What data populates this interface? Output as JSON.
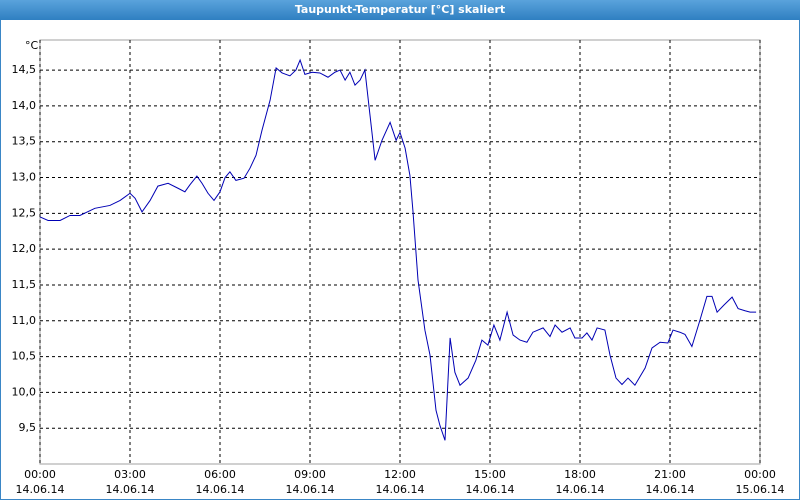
{
  "chart_data": {
    "type": "line",
    "title": "Taupunkt-Temperatur [°C] skaliert",
    "y_label": "°C",
    "color": "#0000b4",
    "grid": true,
    "xlim": [
      0,
      24
    ],
    "ylim": [
      9,
      14.92
    ],
    "xticks": [
      {
        "value": 0,
        "label": "00:00",
        "date": "14.06.14"
      },
      {
        "value": 3,
        "label": "03:00",
        "date": "14.06.14"
      },
      {
        "value": 6,
        "label": "06:00",
        "date": "14.06.14"
      },
      {
        "value": 9,
        "label": "09:00",
        "date": "14.06.14"
      },
      {
        "value": 12,
        "label": "12:00",
        "date": "14.06.14"
      },
      {
        "value": 15,
        "label": "15:00",
        "date": "14.06.14"
      },
      {
        "value": 18,
        "label": "18:00",
        "date": "14.06.14"
      },
      {
        "value": 21,
        "label": "21:00",
        "date": "14.06.14"
      },
      {
        "value": 24,
        "label": "00:00",
        "date": "15.06.14"
      }
    ],
    "yticks": [
      {
        "value": 9.5,
        "label": "9,5"
      },
      {
        "value": 10,
        "label": "10,0"
      },
      {
        "value": 10.5,
        "label": "10,5"
      },
      {
        "value": 11,
        "label": "11,0"
      },
      {
        "value": 11.5,
        "label": "11,5"
      },
      {
        "value": 12,
        "label": "12,0"
      },
      {
        "value": 12.5,
        "label": "12,5"
      },
      {
        "value": 13,
        "label": "13,0"
      },
      {
        "value": 13.5,
        "label": "13,5"
      },
      {
        "value": 14,
        "label": "14,0"
      },
      {
        "value": 14.5,
        "label": "14,5"
      }
    ],
    "x": [
      0.0,
      0.27,
      0.67,
      1.0,
      1.33,
      1.83,
      2.33,
      2.67,
      3.0,
      3.17,
      3.4,
      3.67,
      3.93,
      4.27,
      4.6,
      4.83,
      5.0,
      5.23,
      5.4,
      5.6,
      5.8,
      6.0,
      6.17,
      6.33,
      6.53,
      6.8,
      7.0,
      7.2,
      7.4,
      7.67,
      7.87,
      8.07,
      8.33,
      8.53,
      8.67,
      8.83,
      9.07,
      9.33,
      9.6,
      9.83,
      10.0,
      10.17,
      10.33,
      10.5,
      10.67,
      10.83,
      11.0,
      11.17,
      11.4,
      11.67,
      11.87,
      12.0,
      12.17,
      12.33,
      12.43,
      12.6,
      12.83,
      13.0,
      13.2,
      13.33,
      13.5,
      13.67,
      13.83,
      14.0,
      14.27,
      14.53,
      14.73,
      14.93,
      15.13,
      15.33,
      15.57,
      15.77,
      16.0,
      16.23,
      16.43,
      16.77,
      17.0,
      17.17,
      17.4,
      17.67,
      17.83,
      18.07,
      18.23,
      18.4,
      18.57,
      18.83,
      19.0,
      19.2,
      19.4,
      19.6,
      19.83,
      20.17,
      20.4,
      20.67,
      20.93,
      21.1,
      21.33,
      21.5,
      21.73,
      22.0,
      22.23,
      22.4,
      22.57,
      22.8,
      23.07,
      23.27,
      23.5,
      23.67,
      23.87
    ],
    "values": [
      12.45,
      12.4,
      12.4,
      12.47,
      12.47,
      12.57,
      12.61,
      12.68,
      12.78,
      12.71,
      12.52,
      12.68,
      12.88,
      12.92,
      12.85,
      12.8,
      12.9,
      13.02,
      12.92,
      12.78,
      12.68,
      12.8,
      13.0,
      13.08,
      12.96,
      12.99,
      13.13,
      13.31,
      13.66,
      14.08,
      14.53,
      14.46,
      14.42,
      14.5,
      14.64,
      14.44,
      14.47,
      14.46,
      14.4,
      14.47,
      14.5,
      14.36,
      14.47,
      14.29,
      14.36,
      14.5,
      13.87,
      13.24,
      13.52,
      13.77,
      13.52,
      13.63,
      13.41,
      13.03,
      12.54,
      11.57,
      10.87,
      10.52,
      9.75,
      9.54,
      9.33,
      10.76,
      10.28,
      10.1,
      10.2,
      10.45,
      10.73,
      10.66,
      10.94,
      10.73,
      11.12,
      10.8,
      10.73,
      10.7,
      10.84,
      10.9,
      10.78,
      10.94,
      10.84,
      10.9,
      10.76,
      10.76,
      10.83,
      10.73,
      10.9,
      10.87,
      10.52,
      10.2,
      10.11,
      10.2,
      10.1,
      10.34,
      10.62,
      10.7,
      10.69,
      10.87,
      10.84,
      10.81,
      10.64,
      11.01,
      11.34,
      11.34,
      11.12,
      11.22,
      11.33,
      11.17,
      11.14,
      11.12,
      11.12
    ]
  }
}
